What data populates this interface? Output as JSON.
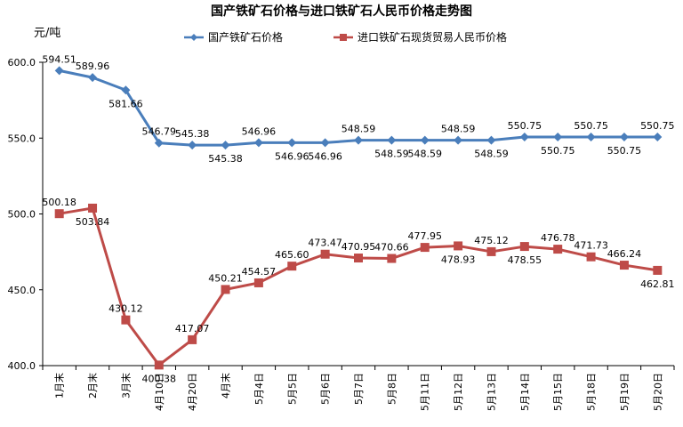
{
  "chart_data": {
    "type": "line",
    "title": "国产铁矿石价格与进口铁矿石人民币价格走势图",
    "ylabel": "元/吨",
    "xlabel": "",
    "ylim": [
      400,
      600
    ],
    "yticks": [
      "400.0",
      "450.0",
      "500.0",
      "550.0",
      "600.0"
    ],
    "grid": false,
    "legend_position": "top",
    "categories": [
      "1月末",
      "2月末",
      "3月末",
      "4月10日",
      "4月20日",
      "4月末",
      "5月4日",
      "5月5日",
      "5月6日",
      "5月7日",
      "5月8日",
      "5月11日",
      "5月12日",
      "5月13日",
      "5月14日",
      "5月15日",
      "5月18日",
      "5月19日",
      "5月20日"
    ],
    "series": [
      {
        "name": "国产铁矿石价格",
        "color": "#4a7ebb",
        "marker": "diamond",
        "values": [
          594.51,
          589.96,
          581.66,
          546.79,
          545.38,
          545.38,
          546.96,
          546.96,
          546.96,
          548.59,
          548.59,
          548.59,
          548.59,
          548.59,
          550.75,
          550.75,
          550.75,
          550.75,
          550.75
        ],
        "labels": [
          "594.51",
          "589.96",
          "581.66",
          "546.79",
          "545.38",
          "545.38",
          "546.96",
          "546.96",
          "546.96",
          "548.59",
          "548.59",
          "548.59",
          "548.59",
          "548.59",
          "550.75",
          "550.75",
          "550.75",
          "550.75",
          "550.75"
        ]
      },
      {
        "name": "进口铁矿石现货贸易人民币价格",
        "color": "#be4b48",
        "marker": "square",
        "values": [
          500.18,
          503.84,
          430.12,
          400.38,
          417.07,
          450.21,
          454.57,
          465.6,
          473.47,
          470.95,
          470.66,
          477.95,
          478.93,
          475.12,
          478.55,
          476.78,
          471.73,
          466.24,
          462.81
        ],
        "labels": [
          "500.18",
          "503.84",
          "430.12",
          "400.38",
          "417.07",
          "450.21",
          "454.57",
          "465.60",
          "473.47",
          "470.95",
          "470.66",
          "477.95",
          "478.93",
          "475.12",
          "478.55",
          "476.78",
          "471.73",
          "466.24",
          "462.81"
        ]
      }
    ]
  }
}
